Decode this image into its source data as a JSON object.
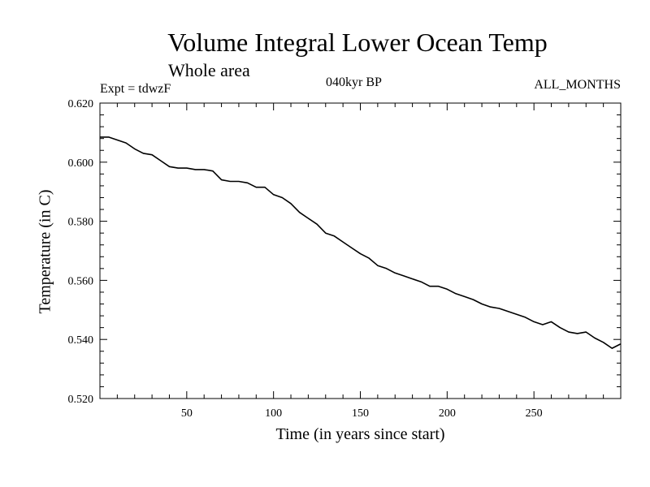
{
  "chart_data": {
    "type": "line",
    "title": "Volume Integral Lower Ocean Temp",
    "subtitle": "Whole area",
    "annotations": {
      "experiment": "Expt = tdwzF",
      "period": "040kyr BP",
      "months": "ALL_MONTHS"
    },
    "xlabel": "Time (in years since start)",
    "ylabel": "Temperature (in C)",
    "xlim": [
      0,
      300
    ],
    "ylim": [
      0.52,
      0.62
    ],
    "x_ticks": [
      50,
      100,
      150,
      200,
      250
    ],
    "y_ticks": [
      "0.520",
      "0.540",
      "0.560",
      "0.580",
      "0.600",
      "0.620"
    ],
    "grid": false,
    "series": [
      {
        "color": "#000000",
        "x": [
          0,
          5,
          10,
          15,
          20,
          25,
          30,
          35,
          40,
          45,
          50,
          55,
          60,
          65,
          70,
          75,
          80,
          85,
          90,
          95,
          100,
          105,
          110,
          115,
          120,
          125,
          130,
          135,
          140,
          145,
          150,
          155,
          160,
          165,
          170,
          175,
          180,
          185,
          190,
          195,
          200,
          205,
          210,
          215,
          220,
          225,
          230,
          235,
          240,
          245,
          250,
          255,
          260,
          265,
          270,
          275,
          280,
          285,
          290,
          295,
          300
        ],
        "y": [
          0.6085,
          0.6085,
          0.6075,
          0.6065,
          0.6045,
          0.603,
          0.6025,
          0.6005,
          0.5985,
          0.598,
          0.598,
          0.5975,
          0.5975,
          0.597,
          0.594,
          0.5935,
          0.5935,
          0.593,
          0.5915,
          0.5915,
          0.589,
          0.588,
          0.586,
          0.583,
          0.581,
          0.579,
          0.576,
          0.575,
          0.573,
          0.571,
          0.569,
          0.5675,
          0.565,
          0.564,
          0.5625,
          0.5615,
          0.5605,
          0.5595,
          0.558,
          0.558,
          0.557,
          0.5555,
          0.5545,
          0.5535,
          0.552,
          0.551,
          0.5505,
          0.5495,
          0.5485,
          0.5475,
          0.546,
          0.545,
          0.546,
          0.544,
          0.5425,
          0.542,
          0.5425,
          0.5405,
          0.539,
          0.537,
          0.5385
        ]
      }
    ]
  }
}
